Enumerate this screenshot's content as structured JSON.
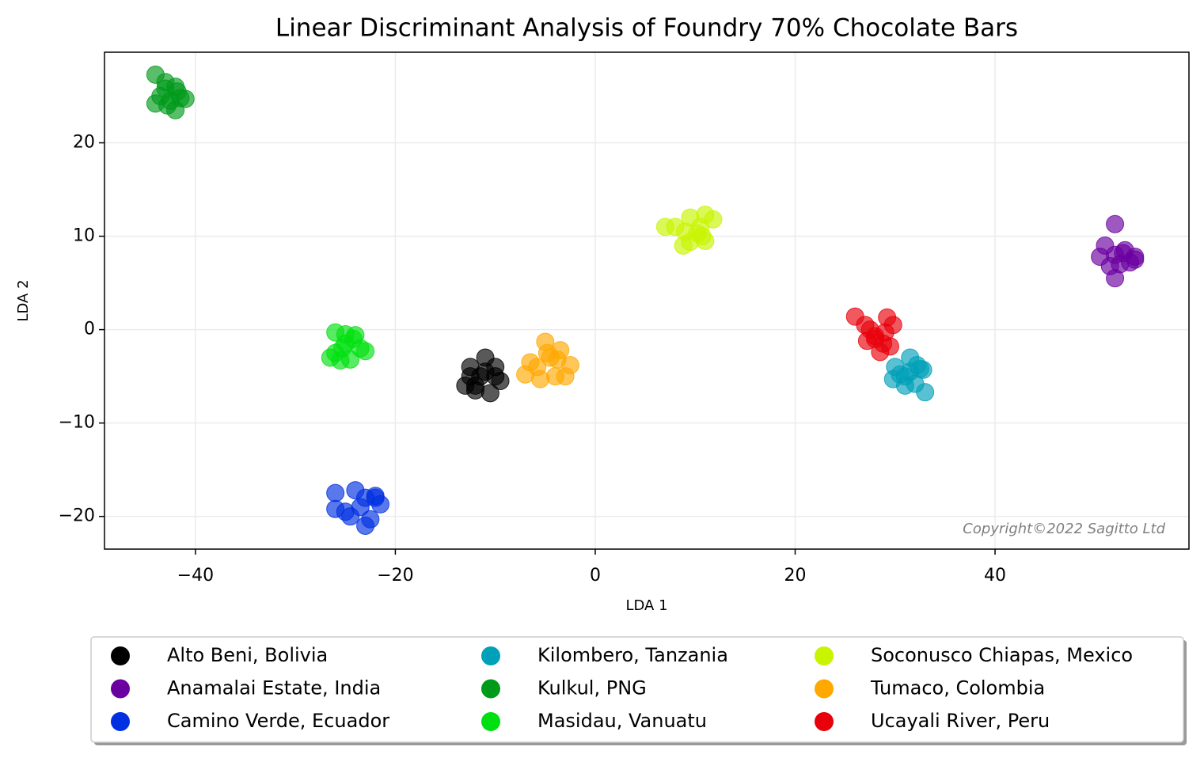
{
  "chart_data": {
    "type": "scatter",
    "title": "Linear Discriminant Analysis of Foundry 70% Chocolate Bars",
    "xlabel": "LDA 1",
    "ylabel": "LDA 2",
    "annotation": "Copyright©2022  Sagitto  Ltd",
    "xlim": [
      -49.1,
      59.4
    ],
    "ylim": [
      -23.5,
      29.7
    ],
    "xticks": [
      {
        "value": -40,
        "label": "−40"
      },
      {
        "value": -20,
        "label": "−20"
      },
      0,
      20,
      40
    ],
    "yticks": [
      {
        "value": -20,
        "label": "−20"
      },
      {
        "value": -10,
        "label": "−10"
      },
      0,
      10,
      20
    ],
    "grid": true,
    "legend": "bottom",
    "series": [
      {
        "name": "Alto Beni, Bolivia",
        "color": "#000000",
        "x": [
          -12.5,
          -11,
          -10,
          -12,
          -11.5,
          -13,
          -10.5,
          -11,
          -12,
          -10,
          -9.5,
          -12.5
        ],
        "values": [
          -4,
          -3,
          -5,
          -6,
          -5,
          -6,
          -6.8,
          -4.5,
          -6.5,
          -4,
          -5.5,
          -5
        ]
      },
      {
        "name": "Anamalai Estate, India",
        "color": "#6a00a0",
        "x": [
          52,
          51,
          53,
          54,
          52.5,
          50.5,
          52,
          53.5,
          51.5,
          52,
          54,
          52.8
        ],
        "values": [
          11.3,
          9,
          8.5,
          7.5,
          7,
          7.8,
          5.5,
          7.2,
          6.8,
          8,
          7.8,
          8.2
        ]
      },
      {
        "name": "Camino Verde, Ecuador",
        "color": "#0030e0",
        "x": [
          -26,
          -24,
          -22,
          -23.5,
          -25,
          -21.5,
          -23,
          -22.5,
          -24.5,
          -26,
          -23,
          -22
        ],
        "values": [
          -17.5,
          -17.2,
          -18,
          -19,
          -19.5,
          -18.7,
          -21,
          -20.3,
          -20,
          -19.2,
          -18,
          -17.8
        ]
      },
      {
        "name": "Kilombero, Tanzania",
        "color": "#00a0b8",
        "x": [
          31.5,
          30,
          32.5,
          33,
          31,
          32,
          29.8,
          31.5,
          30.5,
          32.8,
          31,
          32.2
        ],
        "values": [
          -3,
          -4,
          -4.2,
          -6.7,
          -5,
          -5.8,
          -5.3,
          -4.5,
          -4.8,
          -4.3,
          -6,
          -3.8
        ]
      },
      {
        "name": "Kulkul, PNG",
        "color": "#009a1a",
        "x": [
          -44,
          -43,
          -42,
          -41.5,
          -43.5,
          -42.5,
          -41,
          -44,
          -42,
          -43,
          -41.8,
          -42.8
        ],
        "values": [
          27.3,
          26.5,
          26,
          24.8,
          25,
          24.5,
          24.7,
          24.2,
          23.5,
          25.8,
          25.5,
          24
        ]
      },
      {
        "name": "Masidau, Vanuatu",
        "color": "#00e010",
        "x": [
          -26,
          -25,
          -24,
          -23.5,
          -26.5,
          -25.5,
          -24.5,
          -23,
          -25,
          -26,
          -24.2,
          -25.3
        ],
        "values": [
          -0.3,
          -0.5,
          -0.6,
          -2,
          -3,
          -3.3,
          -3.2,
          -2.3,
          -1.5,
          -2.5,
          -1,
          -2
        ]
      },
      {
        "name": "Soconusco Chiapas, Mexico",
        "color": "#c8f400",
        "x": [
          7,
          8,
          9.5,
          11,
          11.8,
          10.5,
          8.8,
          9.5,
          10.2,
          11,
          9,
          10.7
        ],
        "values": [
          11,
          11,
          12,
          12.3,
          11.8,
          11,
          9,
          9.4,
          10.3,
          9.5,
          10.5,
          10
        ]
      },
      {
        "name": "Tumaco, Colombia",
        "color": "#ffa800",
        "x": [
          -5,
          -3.5,
          -2.5,
          -6.5,
          -7,
          -5.5,
          -4,
          -3,
          -4.5,
          -5.8,
          -3.8,
          -4.8
        ],
        "values": [
          -1.3,
          -2.2,
          -3.8,
          -3.5,
          -4.8,
          -5.3,
          -5,
          -5,
          -3,
          -4,
          -3.2,
          -2.5
        ]
      },
      {
        "name": "Ucayali River, Peru",
        "color": "#e8000a",
        "x": [
          26,
          27,
          28,
          29.2,
          29.8,
          27.2,
          28.5,
          29.5,
          28,
          27.5,
          29,
          28.8
        ],
        "values": [
          1.4,
          0.5,
          -0.7,
          1.3,
          0.5,
          -1.2,
          -2.4,
          -1.8,
          -1,
          0,
          -0.3,
          -1.5
        ]
      }
    ]
  }
}
